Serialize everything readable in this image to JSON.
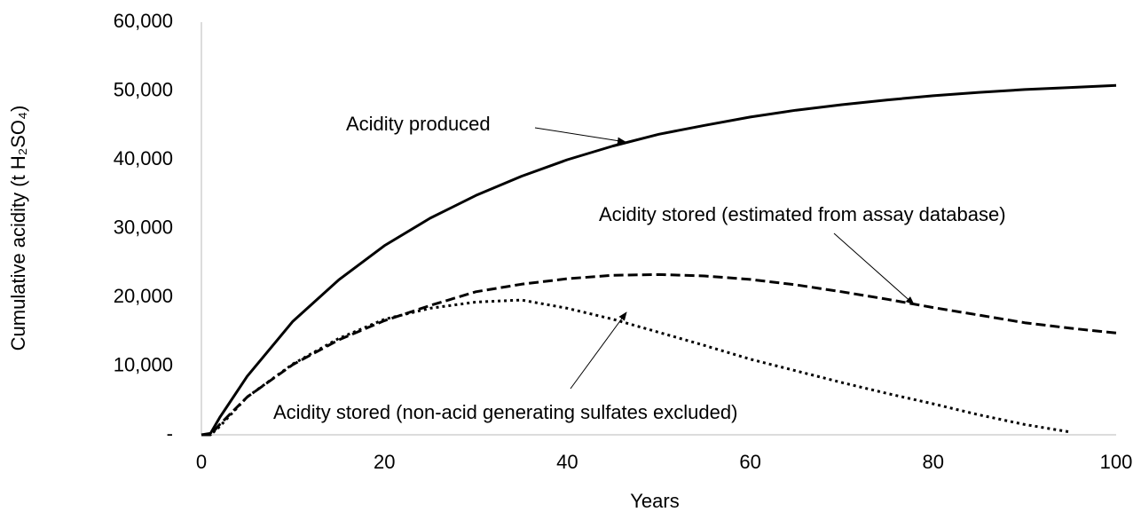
{
  "chart_data": {
    "type": "line",
    "x_label": "Years",
    "y_label": "Cumulative acidity (t H₂SO₄)",
    "x": [
      0,
      1,
      2,
      5,
      10,
      15,
      20,
      25,
      30,
      35,
      40,
      45,
      50,
      55,
      60,
      65,
      70,
      75,
      80,
      85,
      90,
      95,
      100
    ],
    "series": [
      {
        "name": "Acidity produced",
        "color": "#000000",
        "style": "solid",
        "values": [
          0,
          200,
          2500,
          8500,
          16500,
          22500,
          27500,
          31500,
          34800,
          37600,
          40000,
          42000,
          43700,
          45000,
          46200,
          47200,
          48000,
          48700,
          49300,
          49800,
          50200,
          50500,
          50800
        ]
      },
      {
        "name": "Acidity stored (estimated from assay database)",
        "color": "#000000",
        "style": "dashed",
        "values": [
          0,
          0,
          1500,
          5500,
          10200,
          13800,
          16600,
          18800,
          20800,
          21900,
          22700,
          23200,
          23300,
          23100,
          22600,
          21800,
          20800,
          19700,
          18500,
          17400,
          16300,
          15500,
          14800
        ]
      },
      {
        "name": "Acidity stored (non-acid generating sulfates excluded)",
        "color": "#000000",
        "style": "dotted",
        "values": [
          0,
          0,
          1200,
          5500,
          10300,
          14000,
          16800,
          18400,
          19300,
          19600,
          18400,
          16800,
          14900,
          13000,
          11000,
          9300,
          7600,
          6000,
          4500,
          2900,
          1500,
          400,
          null
        ]
      }
    ],
    "xlim": [
      0,
      100
    ],
    "xticks": [
      0,
      20,
      40,
      60,
      80,
      100
    ],
    "ylim": [
      0,
      60000
    ],
    "yticks": [
      {
        "value": 0,
        "label": "-"
      },
      {
        "value": 10000,
        "label": "10,000"
      },
      {
        "value": 20000,
        "label": "20,000"
      },
      {
        "value": 30000,
        "label": "30,000"
      },
      {
        "value": 40000,
        "label": "40,000"
      },
      {
        "value": 50000,
        "label": "50,000"
      },
      {
        "value": 60000,
        "label": "60,000"
      }
    ],
    "grid": false
  }
}
